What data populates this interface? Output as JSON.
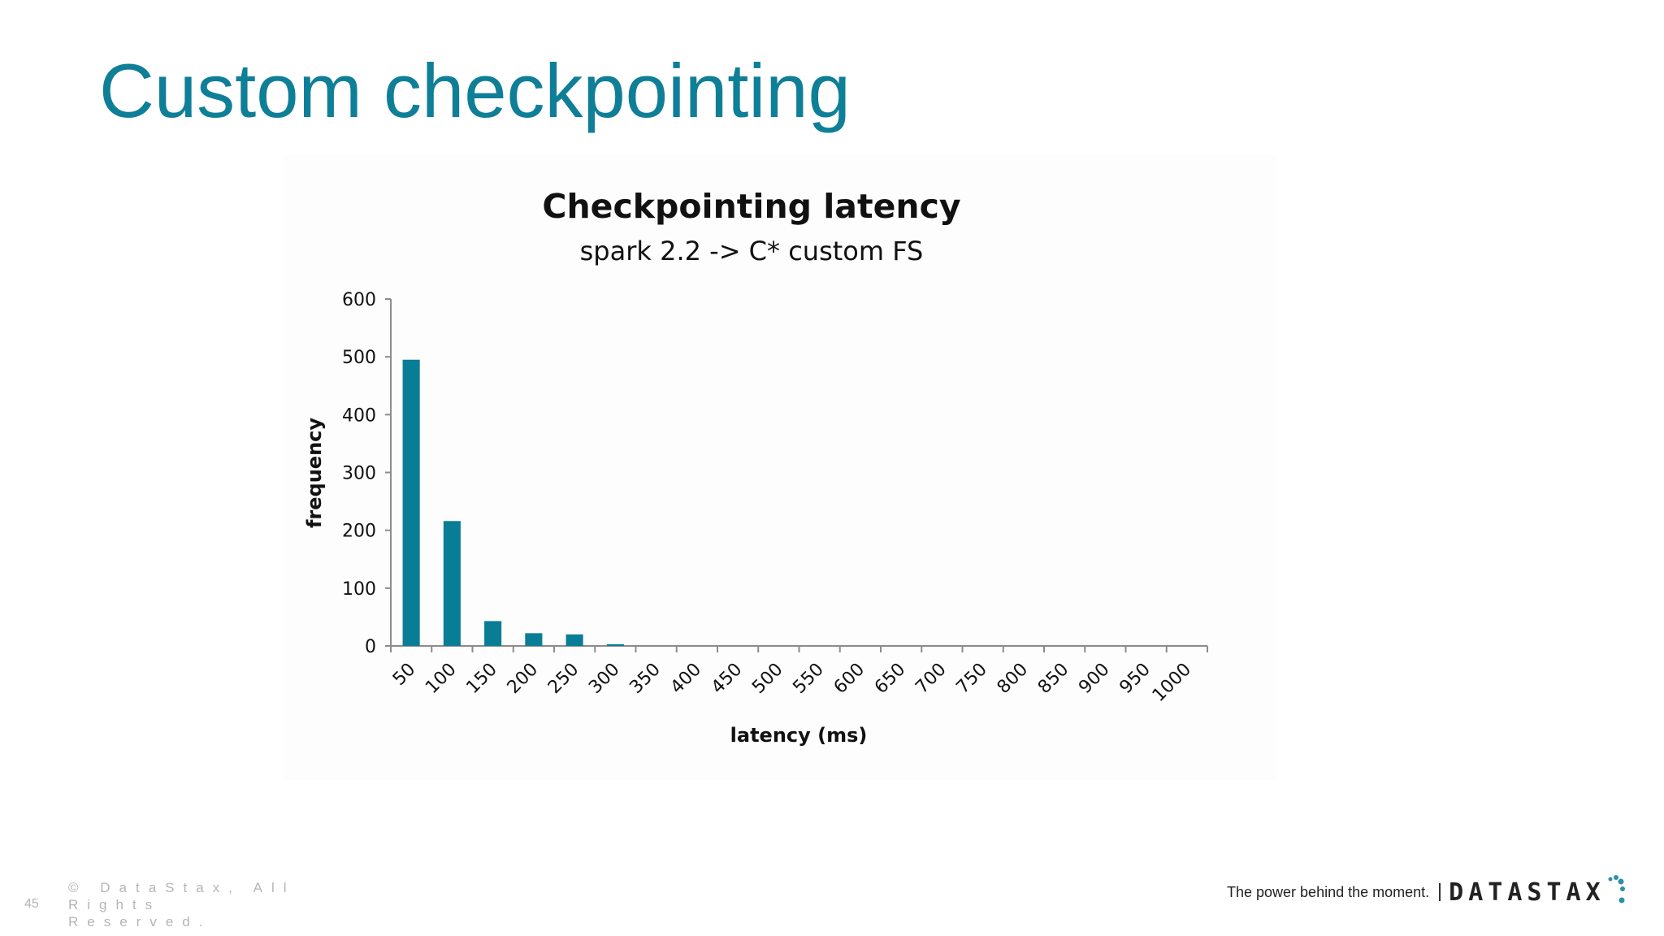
{
  "slide": {
    "title": "Custom checkpointing",
    "page_number": "45",
    "copyright": "© DataStax, All Rights Reserved.",
    "tagline": "The power behind the moment.",
    "brand": "DATASTAX"
  },
  "colors": {
    "title": "#0f7f98",
    "bar": "#0a7d96",
    "axis": "#8c8c8c"
  },
  "chart_data": {
    "type": "bar",
    "title": "Checkpointing latency",
    "subtitle": "spark 2.2 -> C* custom FS",
    "xlabel": "latency (ms)",
    "ylabel": "frequency",
    "categories": [
      "50",
      "100",
      "150",
      "200",
      "250",
      "300",
      "350",
      "400",
      "450",
      "500",
      "550",
      "600",
      "650",
      "700",
      "750",
      "800",
      "850",
      "900",
      "950",
      "1000"
    ],
    "values": [
      495,
      216,
      43,
      22,
      20,
      3,
      0,
      0,
      0,
      0,
      0,
      0,
      0,
      0,
      0,
      0,
      0,
      0,
      0,
      0
    ],
    "ylim": [
      0,
      600
    ],
    "yticks": [
      0,
      100,
      200,
      300,
      400,
      500,
      600
    ],
    "grid": false,
    "legend": "none"
  }
}
